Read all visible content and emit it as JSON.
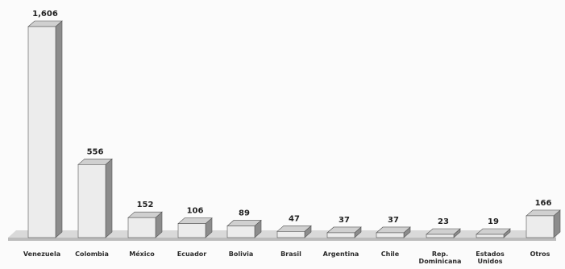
{
  "chart_data": {
    "type": "bar",
    "title": "",
    "xlabel": "",
    "ylabel": "",
    "categories": [
      "Venezuela",
      "Colombia",
      "México",
      "Ecuador",
      "Bolivia",
      "Brasil",
      "Argentina",
      "Chile",
      "Rep. Dominicana",
      "Estados Unidos",
      "Otros"
    ],
    "values": [
      1606,
      556,
      152,
      106,
      89,
      47,
      37,
      37,
      23,
      19,
      166
    ],
    "value_labels": [
      "1,606",
      "556",
      "152",
      "106",
      "89",
      "47",
      "37",
      "37",
      "23",
      "19",
      "166"
    ],
    "ylim": [
      0,
      1606
    ],
    "grid": false,
    "legend": "none",
    "style": "3d-column",
    "colors": {
      "bar_front": "#ececec",
      "bar_side": "#8c8c8c",
      "bar_top": "#d0d0d0",
      "bar_outline": "#555555",
      "floor": "#d9d9d9"
    }
  }
}
